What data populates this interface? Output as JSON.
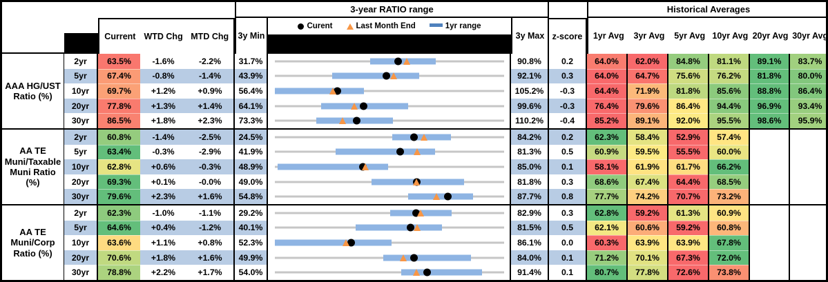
{
  "titles": {
    "ratio_range": "3-year RATIO range",
    "historical": "Historical Averages"
  },
  "headers": {
    "current": "Current",
    "wtd": "WTD Chg",
    "mtd": "MTD Chg",
    "min": "3y Min",
    "max": "3y Max",
    "z": "z-score",
    "avg": [
      "1yr Avg",
      "3yr Avg",
      "5yr Avg",
      "10yr Avg",
      "20yr Avg",
      "30yr Avg"
    ]
  },
  "legend": [
    {
      "marker": "dot-icon",
      "label": "Curent"
    },
    {
      "marker": "triangle-icon",
      "label": "Last Month End"
    },
    {
      "marker": "bar-icon",
      "label": "1yr range"
    }
  ],
  "colors": {
    "scale_red": "#F8696B",
    "scale_yellow": "#FFEB84",
    "scale_green": "#63BE7B",
    "band_blue": "#B8CCE4",
    "range_bar_blue": "#8EB4E3",
    "track_gray": "#C6C6C6",
    "marker_orange": "#F79646",
    "legend_bar_blue": "#4F81BD",
    "dot_black": "#000000"
  },
  "chart_data": {
    "type": "table",
    "note": "Each row also drawn as a dot-range strip: gray track = 3y min-max, blue bar = 1yr range, black dot = current, orange triangle = last month end",
    "groups": [
      {
        "label_lines": [
          "AAA HG/UST",
          "Ratio (%)"
        ],
        "rows": [
          {
            "tenor": "2yr",
            "current": 63.5,
            "wtd": "-1.6%",
            "mtd": "-2.2%",
            "min": 31.7,
            "max": 90.8,
            "bar": [
              56.3,
              73.2
            ],
            "lme": 65.7,
            "z": "0.2",
            "avgs": [
              64.0,
              62.0,
              84.8,
              81.1,
              89.1,
              83.7
            ]
          },
          {
            "tenor": "5yr",
            "current": 67.4,
            "wtd": "-0.8%",
            "mtd": "-1.4%",
            "min": 43.9,
            "max": 92.1,
            "bar": [
              55.9,
              74.3
            ],
            "lme": 68.8,
            "z": "0.3",
            "avgs": [
              64.0,
              64.7,
              75.6,
              76.2,
              81.8,
              80.0
            ]
          },
          {
            "tenor": "10yr",
            "current": 69.7,
            "wtd": "+1.2%",
            "mtd": "+0.9%",
            "min": 56.4,
            "max": 105.2,
            "bar": [
              56.4,
              75.4
            ],
            "lme": 68.8,
            "z": "-0.3",
            "avgs": [
              64.4,
              71.9,
              81.8,
              85.6,
              88.8,
              86.4
            ]
          },
          {
            "tenor": "20yr",
            "current": 77.8,
            "wtd": "+1.3%",
            "mtd": "+1.4%",
            "min": 64.1,
            "max": 99.6,
            "bar": [
              71.3,
              84.7
            ],
            "lme": 76.4,
            "z": "-0.3",
            "avgs": [
              76.4,
              79.6,
              86.4,
              94.4,
              96.9,
              93.4
            ]
          },
          {
            "tenor": "30yr",
            "current": 86.5,
            "wtd": "+1.8%",
            "mtd": "+2.3%",
            "min": 73.3,
            "max": 110.2,
            "bar": [
              80.0,
              92.3
            ],
            "lme": 84.2,
            "z": "-0.4",
            "avgs": [
              85.2,
              89.1,
              92.0,
              95.5,
              98.6,
              95.9
            ]
          }
        ]
      },
      {
        "label_lines": [
          "AA TE",
          "Muni/Taxable",
          "Muni Ratio",
          "(%)"
        ],
        "rows": [
          {
            "tenor": "2yr",
            "current": 60.8,
            "wtd": "-1.4%",
            "mtd": "-2.5%",
            "min": 24.5,
            "max": 84.2,
            "bar": [
              55.1,
              70.3
            ],
            "lme": 63.3,
            "z": "0.2",
            "avgs": [
              62.3,
              58.4,
              52.9,
              57.4,
              null,
              null
            ]
          },
          {
            "tenor": "5yr",
            "current": 63.4,
            "wtd": "-0.3%",
            "mtd": "-2.9%",
            "min": 41.9,
            "max": 81.3,
            "bar": [
              52.3,
              69.4
            ],
            "lme": 66.3,
            "z": "0.5",
            "avgs": [
              60.9,
              59.5,
              55.5,
              60.0,
              null,
              null
            ]
          },
          {
            "tenor": "10yr",
            "current": 62.8,
            "wtd": "+0.6%",
            "mtd": "-0.3%",
            "min": 48.9,
            "max": 85.0,
            "bar": [
              49.3,
              66.7
            ],
            "lme": 63.1,
            "z": "0.1",
            "avgs": [
              58.1,
              61.9,
              61.7,
              66.2,
              null,
              null
            ]
          },
          {
            "tenor": "20yr",
            "current": 69.3,
            "wtd": "+0.1%",
            "mtd": "-0.0%",
            "min": 49.0,
            "max": 81.8,
            "bar": [
              62.8,
              76.1
            ],
            "lme": 69.3,
            "z": "0.3",
            "avgs": [
              68.6,
              67.4,
              64.4,
              68.5,
              null,
              null
            ]
          },
          {
            "tenor": "30yr",
            "current": 79.6,
            "wtd": "+2.3%",
            "mtd": "+1.6%",
            "min": 54.8,
            "max": 87.7,
            "bar": [
              73.9,
              83.2
            ],
            "lme": 78.0,
            "z": "0.8",
            "avgs": [
              77.7,
              74.2,
              70.7,
              73.2,
              null,
              null
            ]
          }
        ]
      },
      {
        "label_lines": [
          "AA TE",
          "Muni/Corp",
          "Ratio (%)"
        ],
        "rows": [
          {
            "tenor": "2yr",
            "current": 62.3,
            "wtd": "-1.0%",
            "mtd": "-1.1%",
            "min": 29.2,
            "max": 82.9,
            "bar": [
              56.2,
              70.6
            ],
            "lme": 63.4,
            "z": "0.3",
            "avgs": [
              62.8,
              59.2,
              61.3,
              60.9,
              null,
              null
            ]
          },
          {
            "tenor": "5yr",
            "current": 64.6,
            "wtd": "+0.4%",
            "mtd": "-1.2%",
            "min": 40.1,
            "max": 81.5,
            "bar": [
              54.7,
              70.3
            ],
            "lme": 65.8,
            "z": "0.5",
            "avgs": [
              62.1,
              60.6,
              59.2,
              60.8,
              null,
              null
            ]
          },
          {
            "tenor": "10yr",
            "current": 63.6,
            "wtd": "+1.1%",
            "mtd": "+0.8%",
            "min": 52.3,
            "max": 86.1,
            "bar": [
              52.3,
              69.5
            ],
            "lme": 62.8,
            "z": "0.0",
            "avgs": [
              60.3,
              63.9,
              63.9,
              67.8,
              null,
              null
            ]
          },
          {
            "tenor": "20yr",
            "current": 70.6,
            "wtd": "+1.8%",
            "mtd": "+1.6%",
            "min": 49.9,
            "max": 84.0,
            "bar": [
              66.0,
              79.1
            ],
            "lme": 69.0,
            "z": "0.1",
            "avgs": [
              71.2,
              70.1,
              67.3,
              72.0,
              null,
              null
            ]
          },
          {
            "tenor": "30yr",
            "current": 78.8,
            "wtd": "+2.2%",
            "mtd": "+1.7%",
            "min": 54.0,
            "max": 91.4,
            "bar": [
              74.6,
              87.8
            ],
            "lme": 77.1,
            "z": "0.1",
            "avgs": [
              80.7,
              77.8,
              72.6,
              73.8,
              null,
              null
            ]
          }
        ]
      }
    ]
  }
}
